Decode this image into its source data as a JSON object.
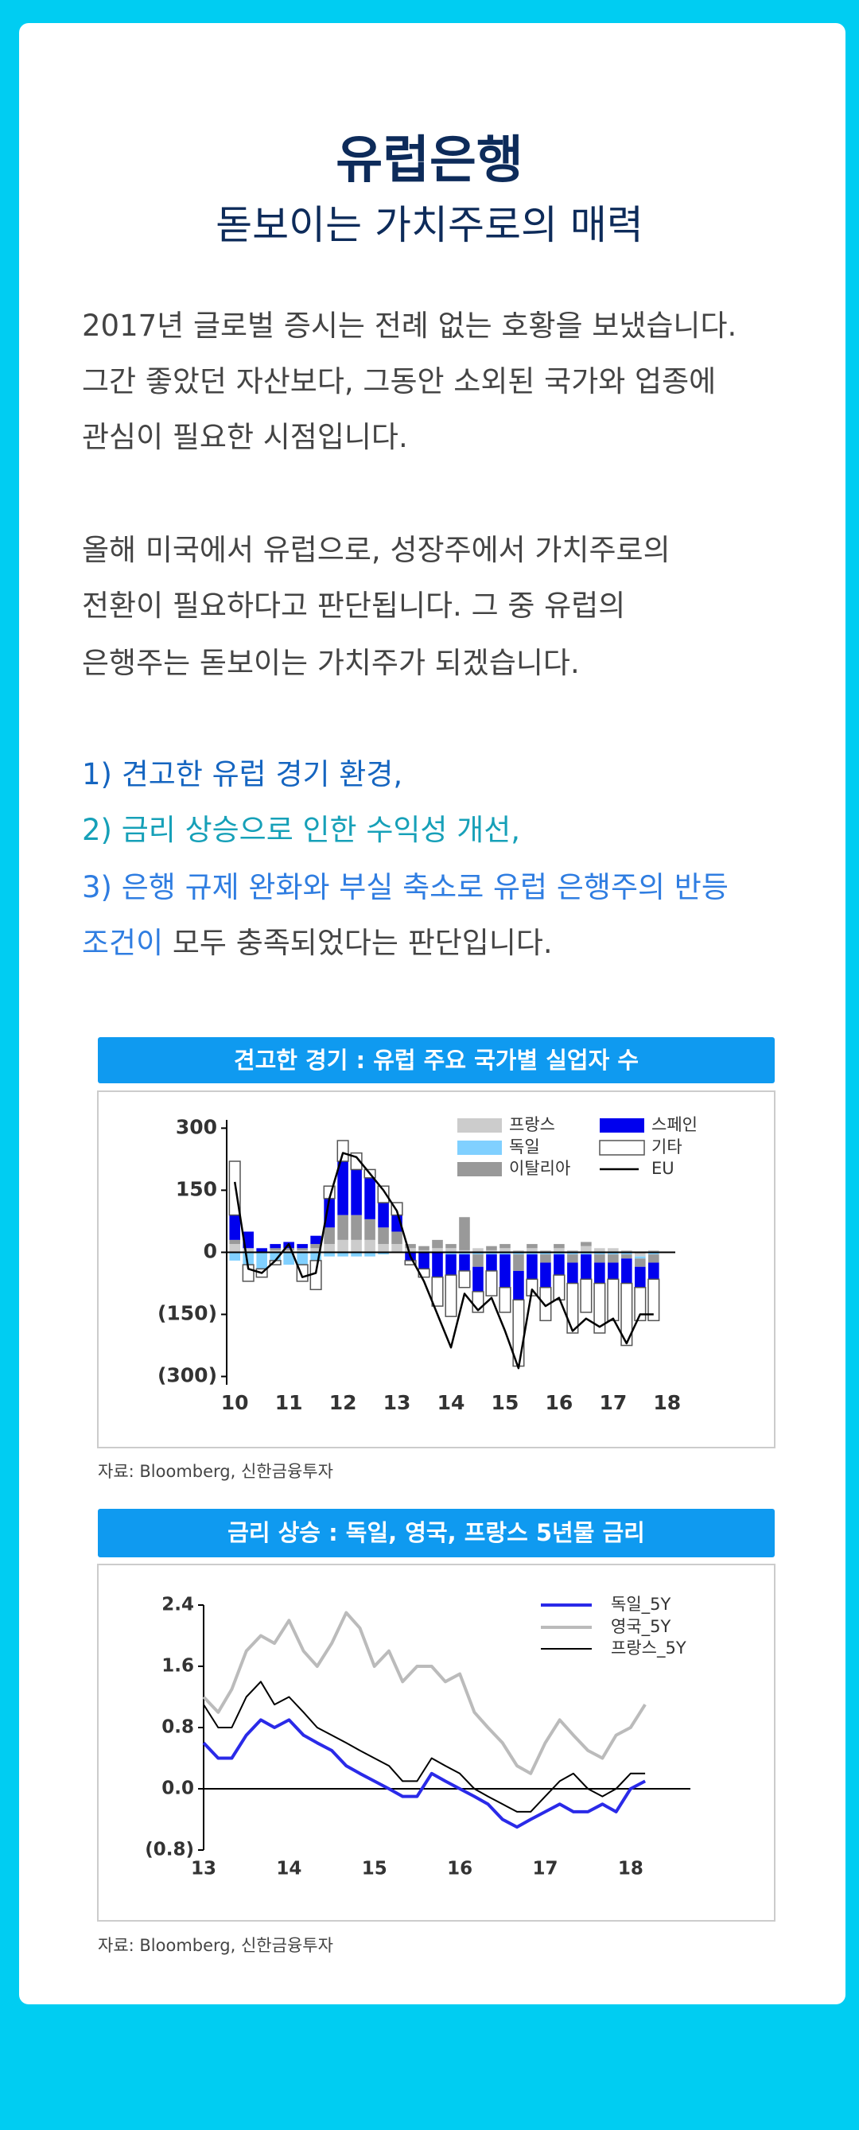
{
  "header": {
    "title": "유럽은행",
    "subtitle": "돋보이는 가치주로의 매력"
  },
  "paragraphs": [
    {
      "lines": [
        "2017년 글로벌 증시는 전례 없는 호황을 보냈습니다.",
        "그간 좋았던 자산보다, 그동안 소외된 국가와 업종에",
        "관심이 필요한 시점입니다."
      ]
    },
    {
      "lines": [
        "올해 미국에서 유럽으로, 성장주에서 가치주로의",
        "전환이 필요하다고 판단됩니다. 그 중 유럽의",
        "은행주는 돋보이는 가치주가 되겠습니다."
      ]
    }
  ],
  "highlights": [
    {
      "parts": [
        {
          "text": "1) 견고한 유럽 경기 환경,",
          "color": "#1565c0"
        }
      ]
    },
    {
      "parts": [
        {
          "text": "2) 금리 상승으로 인한 수익성 개선,",
          "color": "#16a0b8"
        }
      ]
    },
    {
      "parts": [
        {
          "text": "3) 은행 규제 완화와 부실 축소로 유럽 은행주의 반등",
          "color": "#2f7de1"
        }
      ]
    },
    {
      "parts": [
        {
          "text": "조건이",
          "color": "#2f7de1"
        },
        {
          "text": " 모두 충족되었다는 판단입니다.",
          "color": "#444444"
        }
      ]
    }
  ],
  "chart_data": [
    {
      "type": "bar",
      "title": "견고한 경기 : 유럽 주요 국가별 실업자 수",
      "source": "자료: Bloomberg, 신한금융투자",
      "x": [
        10.0,
        10.25,
        10.5,
        10.75,
        11.0,
        11.25,
        11.5,
        11.75,
        12.0,
        12.25,
        12.5,
        12.75,
        13.0,
        13.25,
        13.5,
        13.75,
        14.0,
        14.25,
        14.5,
        14.75,
        15.0,
        15.25,
        15.5,
        15.75,
        16.0,
        16.25,
        16.5,
        16.75,
        17.0,
        17.25,
        17.5,
        17.75
      ],
      "series": [
        {
          "name": "프랑스",
          "color": "#cccccc",
          "values": [
            20,
            10,
            0,
            5,
            5,
            5,
            10,
            20,
            30,
            30,
            30,
            20,
            20,
            10,
            5,
            10,
            10,
            5,
            10,
            5,
            10,
            5,
            10,
            5,
            10,
            5,
            15,
            10,
            10,
            5,
            -10,
            5
          ]
        },
        {
          "name": "독일",
          "color": "#80d0ff",
          "values": [
            -20,
            -30,
            -40,
            -20,
            -30,
            -30,
            -20,
            -10,
            -10,
            -10,
            -10,
            -5,
            0,
            0,
            0,
            0,
            -5,
            -5,
            -5,
            -5,
            -5,
            -5,
            -5,
            -5,
            -5,
            -5,
            -5,
            -5,
            -5,
            -5,
            -5,
            -5
          ]
        },
        {
          "name": "이탈리아",
          "color": "#999999",
          "values": [
            10,
            0,
            0,
            5,
            5,
            5,
            10,
            40,
            60,
            60,
            50,
            40,
            30,
            10,
            10,
            20,
            10,
            80,
            -30,
            10,
            10,
            -40,
            10,
            -20,
            10,
            -20,
            10,
            -20,
            -20,
            -10,
            -20,
            -20
          ]
        },
        {
          "name": "스페인",
          "color": "#0000ee",
          "values": [
            60,
            40,
            10,
            10,
            15,
            10,
            20,
            70,
            130,
            110,
            100,
            60,
            40,
            -20,
            -40,
            -60,
            -50,
            -40,
            -60,
            -40,
            -80,
            -70,
            -60,
            -60,
            -50,
            -50,
            -60,
            -50,
            -40,
            -60,
            -50,
            -40
          ]
        },
        {
          "name": "기타",
          "color": "#ffffff",
          "stroke": "#555555",
          "values": [
            130,
            -40,
            -20,
            -10,
            0,
            -40,
            -70,
            30,
            50,
            40,
            20,
            40,
            30,
            -10,
            -20,
            -70,
            -100,
            -40,
            -50,
            -60,
            -60,
            -160,
            -40,
            -80,
            -60,
            -120,
            -80,
            -120,
            -100,
            -150,
            -80,
            -100
          ]
        },
        {
          "name": "EU",
          "color": "#000000",
          "type": "line",
          "values": [
            170,
            -40,
            -50,
            -20,
            20,
            -60,
            -50,
            130,
            240,
            230,
            190,
            150,
            100,
            -10,
            -70,
            -150,
            -230,
            -100,
            -140,
            -110,
            -190,
            -280,
            -90,
            -130,
            -110,
            -190,
            -160,
            -180,
            -160,
            -220,
            -150,
            -150
          ]
        }
      ],
      "xlim": [
        9.85,
        18.15
      ],
      "xticks": [
        10,
        11,
        12,
        13,
        14,
        15,
        16,
        17,
        18
      ],
      "ylim": [
        -320,
        320
      ],
      "yticks": [
        300,
        150,
        0,
        {
          "value": -150,
          "label": "(150)"
        },
        {
          "value": -300,
          "label": "(300)"
        }
      ]
    },
    {
      "type": "line",
      "title": "금리 상승 : 독일, 영국, 프랑스 5년물 금리",
      "source": "자료: Bloomberg, 신한금융투자",
      "x": [
        13.0,
        13.17,
        13.33,
        13.5,
        13.67,
        13.83,
        14.0,
        14.17,
        14.33,
        14.5,
        14.67,
        14.83,
        15.0,
        15.17,
        15.33,
        15.5,
        15.67,
        15.83,
        16.0,
        16.17,
        16.33,
        16.5,
        16.67,
        16.83,
        17.0,
        17.17,
        17.33,
        17.5,
        17.67,
        17.83,
        18.0,
        18.17
      ],
      "series": [
        {
          "name": "독일_5Y",
          "color": "#2a2ae8",
          "width": 4,
          "values": [
            0.6,
            0.4,
            0.4,
            0.7,
            0.9,
            0.8,
            0.9,
            0.7,
            0.6,
            0.5,
            0.3,
            0.2,
            0.1,
            0.0,
            -0.1,
            -0.1,
            0.2,
            0.1,
            0.0,
            -0.1,
            -0.2,
            -0.4,
            -0.5,
            -0.4,
            -0.3,
            -0.2,
            -0.3,
            -0.3,
            -0.2,
            -0.3,
            0.0,
            0.1
          ]
        },
        {
          "name": "영국_5Y",
          "color": "#bbbbbb",
          "width": 4,
          "values": [
            1.2,
            1.0,
            1.3,
            1.8,
            2.0,
            1.9,
            2.2,
            1.8,
            1.6,
            1.9,
            2.3,
            2.1,
            1.6,
            1.8,
            1.4,
            1.6,
            1.6,
            1.4,
            1.5,
            1.0,
            0.8,
            0.6,
            0.3,
            0.2,
            0.6,
            0.9,
            0.7,
            0.5,
            0.4,
            0.7,
            0.8,
            1.1
          ]
        },
        {
          "name": "프랑스_5Y",
          "color": "#000000",
          "width": 2,
          "values": [
            1.1,
            0.8,
            0.8,
            1.2,
            1.4,
            1.1,
            1.2,
            1.0,
            0.8,
            0.7,
            0.6,
            0.5,
            0.4,
            0.3,
            0.1,
            0.1,
            0.4,
            0.3,
            0.2,
            0.0,
            -0.1,
            -0.2,
            -0.3,
            -0.3,
            -0.1,
            0.1,
            0.2,
            0.0,
            -0.1,
            0.0,
            0.2,
            0.2
          ]
        }
      ],
      "xlim": [
        13,
        18.7
      ],
      "xticks": [
        13,
        14,
        15,
        16,
        17,
        18
      ],
      "ylim": [
        -0.8,
        2.4
      ],
      "yticks": [
        2.4,
        1.6,
        0.8,
        {
          "value": 0,
          "label": "0.0"
        },
        {
          "value": -0.8,
          "label": "(0.8)"
        }
      ]
    }
  ]
}
